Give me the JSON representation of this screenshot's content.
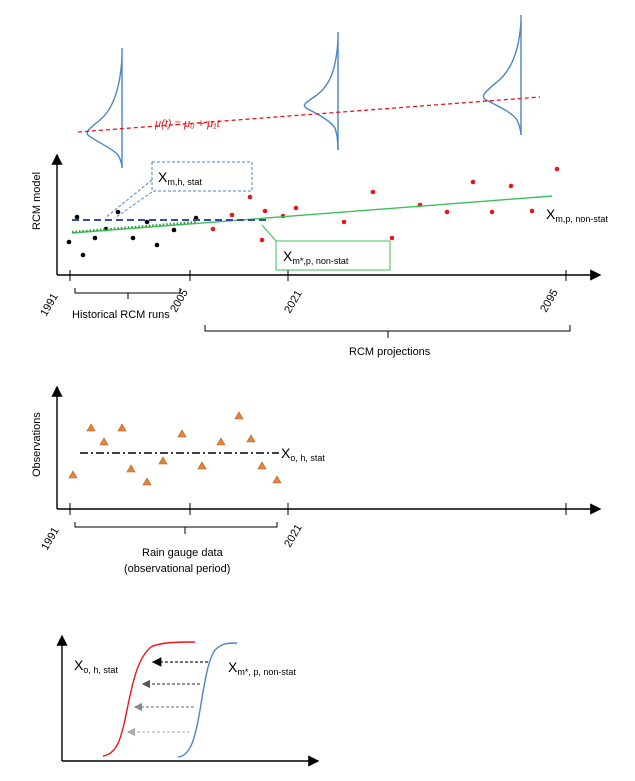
{
  "panel_top": {
    "ylabel": "RCM model",
    "mu_label": "μ(t) = μ₀ + μ₁t",
    "box_hist": {
      "main": "X",
      "sub": "m,h, stat"
    },
    "box_proj": {
      "main": "X",
      "sub": "m*,p, non-stat"
    },
    "right_label": {
      "main": "X",
      "sub": "m,p, non-stat"
    },
    "ticks": [
      "1991",
      "2005",
      "2021",
      "2095"
    ],
    "bracket_hist": "Historical RCM runs",
    "bracket_proj": "RCM projections"
  },
  "panel_mid": {
    "ylabel": "Observations",
    "series_label": {
      "main": "X",
      "sub": "o, h, stat"
    },
    "ticks": [
      "1991",
      "2021"
    ],
    "bracket_line1": "Rain gauge data",
    "bracket_line2": "(observational period)"
  },
  "panel_bottom": {
    "left_label": {
      "main": "X",
      "sub": "o, h, stat"
    },
    "right_label": {
      "main": "X",
      "sub": "m*, p, non-stat"
    }
  },
  "colors": {
    "red": "#e8151b",
    "green": "#3cc15a",
    "blue_curve": "#4a86c5",
    "dark_blue_dash": "#2f4faa",
    "orange": "#e8833a",
    "box_blue": "#4a86c5",
    "box_green": "#3cc15a"
  }
}
